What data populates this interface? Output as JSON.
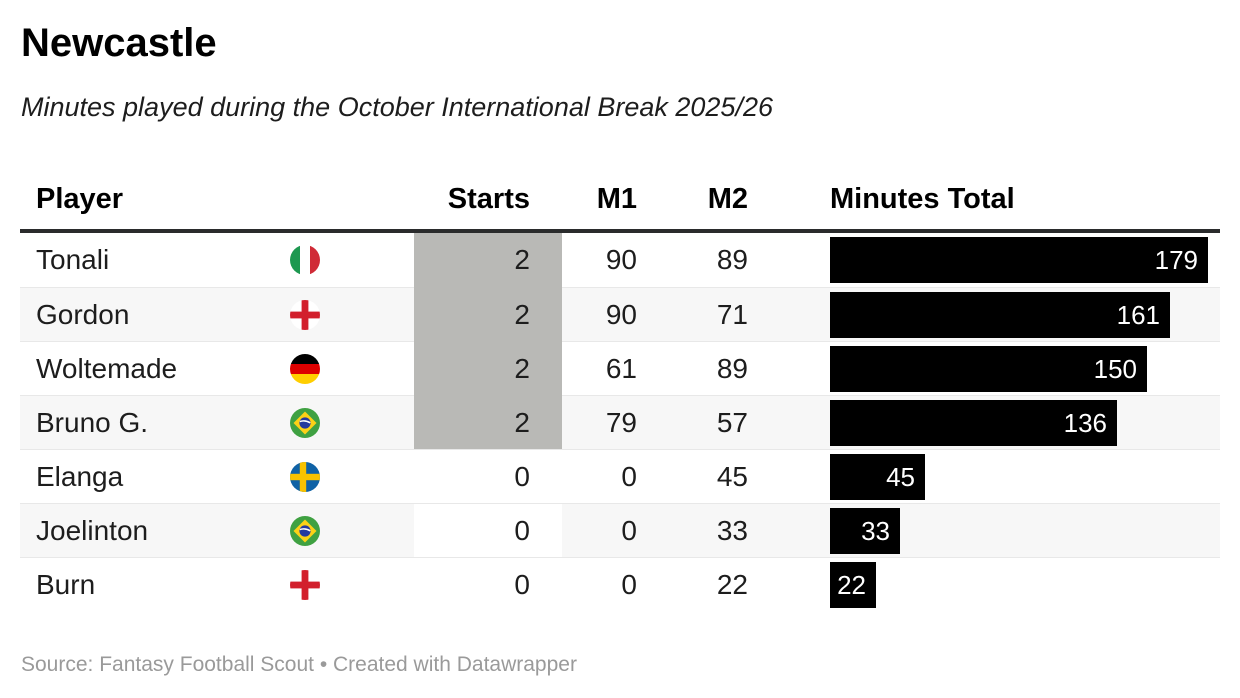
{
  "title": "Newcastle",
  "subtitle": "Minutes played during the October International Break 2025/26",
  "footer": "Source: Fantasy Football Scout • Created with Datawrapper",
  "table": {
    "columns": [
      "Player",
      "Starts",
      "M1",
      "M2",
      "Minutes Total"
    ],
    "bar_max": 179,
    "rows": [
      {
        "player": "Tonali",
        "nation": "italy",
        "starts": 2,
        "m1": 90,
        "m2": 89,
        "total": 179
      },
      {
        "player": "Gordon",
        "nation": "england",
        "starts": 2,
        "m1": 90,
        "m2": 71,
        "total": 161
      },
      {
        "player": "Woltemade",
        "nation": "germany",
        "starts": 2,
        "m1": 61,
        "m2": 89,
        "total": 150
      },
      {
        "player": "Bruno G.",
        "nation": "brazil",
        "starts": 2,
        "m1": 79,
        "m2": 57,
        "total": 136
      },
      {
        "player": "Elanga",
        "nation": "sweden",
        "starts": 0,
        "m1": 0,
        "m2": 45,
        "total": 45
      },
      {
        "player": "Joelinton",
        "nation": "brazil",
        "starts": 0,
        "m1": 0,
        "m2": 33,
        "total": 33
      },
      {
        "player": "Burn",
        "nation": "england",
        "starts": 0,
        "m1": 0,
        "m2": 22,
        "total": 22
      }
    ]
  },
  "colors": {
    "bar": "#000000",
    "bar_label": "#ffffff",
    "starts_highlight": "#b9b9b6",
    "row_stripe": "#f7f7f7",
    "header_rule": "#2a2b2c",
    "divider": "#e8e8e8",
    "footer_text": "#9a9a9a"
  },
  "chart_data": {
    "type": "table",
    "title": "Newcastle",
    "subtitle": "Minutes played during the October International Break 2025/26",
    "columns": [
      "Player",
      "Starts",
      "M1",
      "M2",
      "Minutes Total"
    ],
    "rows": [
      [
        "Tonali",
        2,
        90,
        89,
        179
      ],
      [
        "Gordon",
        2,
        90,
        71,
        161
      ],
      [
        "Woltemade",
        2,
        61,
        89,
        150
      ],
      [
        "Bruno G.",
        2,
        79,
        57,
        136
      ],
      [
        "Elanga",
        0,
        0,
        45,
        45
      ],
      [
        "Joelinton",
        0,
        0,
        33,
        33
      ],
      [
        "Burn",
        0,
        0,
        22,
        22
      ]
    ],
    "nations": [
      "Italy",
      "England",
      "Germany",
      "Brazil",
      "Sweden",
      "Brazil",
      "England"
    ],
    "bar_column": "Minutes Total",
    "bar_range": [
      0,
      179
    ],
    "notes": "Starts cells shaded gray for value 2, white for 0; Minutes Total rendered as black bars with white value labels",
    "source": "Fantasy Football Scout"
  }
}
